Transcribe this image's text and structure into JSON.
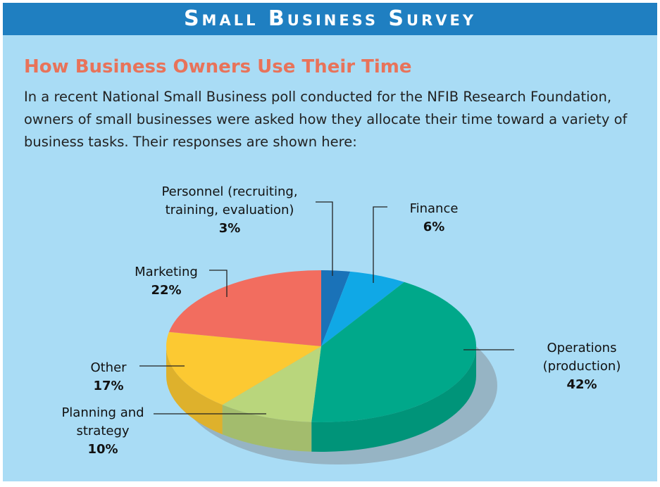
{
  "chart_data": {
    "type": "pie",
    "title": "Small Business Survey",
    "subtitle": "How Business Owners Use Their Time",
    "description": "In a recent National Small Business poll conducted for the NFIB Research Foundation, owners of small businesses were asked how they allocate their time toward a variety of business tasks. Their responses are shown here:",
    "categories": [
      "Personnel (recruiting, training, evaluation)",
      "Finance",
      "Operations (production)",
      "Planning and strategy",
      "Other",
      "Marketing"
    ],
    "values": [
      3,
      6,
      42,
      10,
      17,
      22
    ],
    "value_labels": [
      "3%",
      "6%",
      "42%",
      "10%",
      "17%",
      "22%"
    ],
    "colors": [
      "#1a72b8",
      "#10a8e6",
      "#00a88a",
      "#b9d67c",
      "#fcc932",
      "#f26d5f"
    ]
  }
}
